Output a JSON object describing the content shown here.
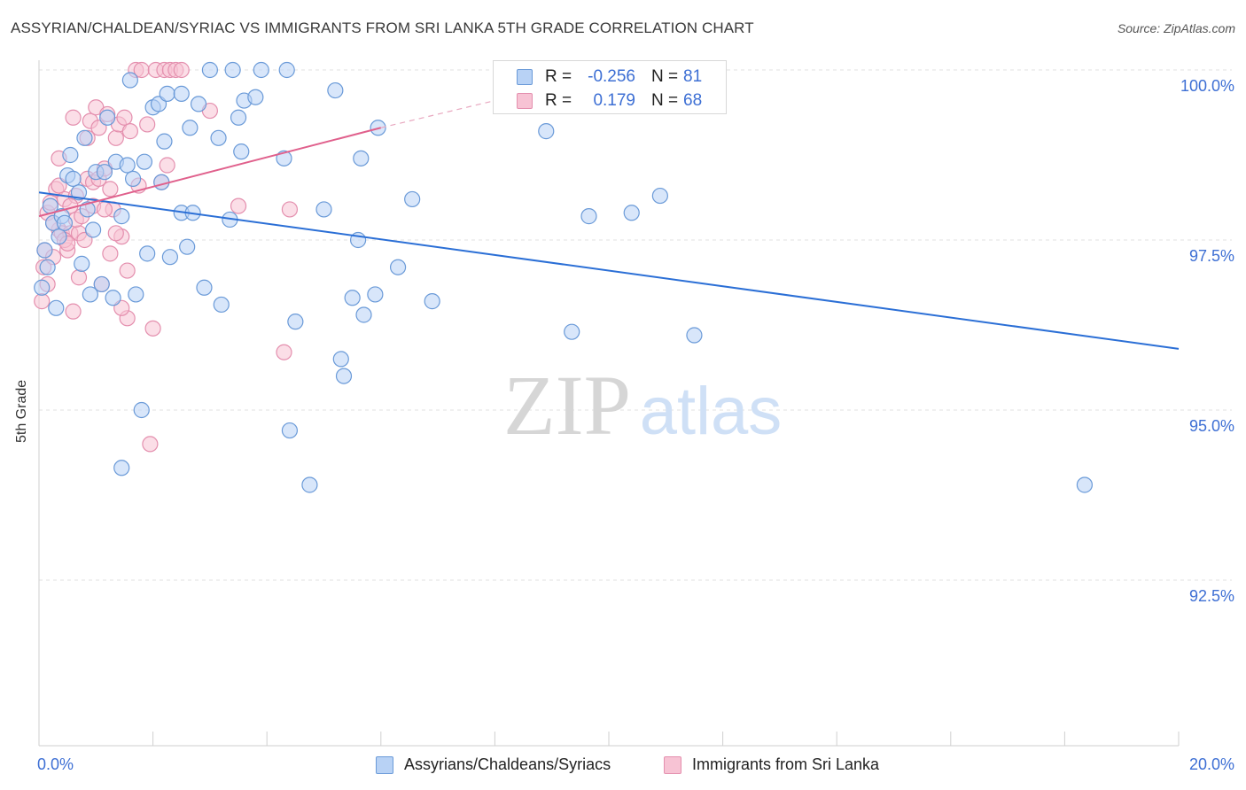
{
  "title": "ASSYRIAN/CHALDEAN/SYRIAC VS IMMIGRANTS FROM SRI LANKA 5TH GRADE CORRELATION CHART",
  "source": "Source: ZipAtlas.com",
  "watermark": {
    "zip": "ZIP",
    "atlas": "atlas"
  },
  "legend_top": {
    "rows": [
      {
        "r_label": "R =",
        "r_value": "-0.256",
        "n_label": "N =",
        "n_value": "81"
      },
      {
        "r_label": "R =",
        "r_value": "0.179",
        "n_label": "N =",
        "n_value": "68"
      }
    ]
  },
  "legend_bottom": {
    "series1": "Assyrians/Chaldeans/Syriacs",
    "series2": "Immigrants from Sri Lanka"
  },
  "colors": {
    "blue_fill": "#b8d2f5",
    "blue_stroke": "#6a9ad8",
    "blue_line": "#2b6fd6",
    "pink_fill": "#f7c3d4",
    "pink_stroke": "#e48fae",
    "pink_line": "#e0608c",
    "axis_text": "#3d6fd4",
    "grid": "#e2e2e2"
  },
  "chart_data": {
    "type": "scatter",
    "title": "ASSYRIAN/CHALDEAN/SYRIAC VS IMMIGRANTS FROM SRI LANKA 5TH GRADE CORRELATION CHART",
    "xlabel": "",
    "ylabel": "5th Grade",
    "xlim": [
      0.0,
      20.0
    ],
    "ylim": [
      90.0,
      100.5
    ],
    "x_tick_labels": {
      "left": "0.0%",
      "right": "20.0%"
    },
    "y_ticks": [
      {
        "value": 100.0,
        "label": "100.0%"
      },
      {
        "value": 97.5,
        "label": "97.5%"
      },
      {
        "value": 95.0,
        "label": "95.0%"
      },
      {
        "value": 92.5,
        "label": "92.5%"
      }
    ],
    "series": [
      {
        "name": "Assyrians/Chaldeans/Syriacs",
        "color": "#6a9ad8",
        "r": -0.256,
        "n": 81,
        "trend": {
          "x": [
            0.0,
            20.0
          ],
          "y": [
            98.2,
            95.9
          ]
        },
        "points": [
          [
            0.05,
            96.8
          ],
          [
            0.1,
            97.35
          ],
          [
            0.15,
            97.1
          ],
          [
            0.2,
            98.0
          ],
          [
            0.25,
            97.75
          ],
          [
            0.3,
            96.5
          ],
          [
            0.35,
            97.55
          ],
          [
            0.4,
            97.85
          ],
          [
            0.5,
            98.45
          ],
          [
            0.55,
            98.75
          ],
          [
            0.6,
            98.4
          ],
          [
            0.7,
            98.2
          ],
          [
            0.75,
            97.15
          ],
          [
            0.8,
            99.0
          ],
          [
            0.85,
            97.95
          ],
          [
            0.9,
            96.7
          ],
          [
            0.95,
            97.65
          ],
          [
            1.0,
            98.5
          ],
          [
            1.1,
            96.85
          ],
          [
            1.15,
            98.5
          ],
          [
            1.2,
            99.3
          ],
          [
            1.3,
            96.65
          ],
          [
            1.35,
            98.65
          ],
          [
            1.45,
            97.85
          ],
          [
            1.55,
            98.6
          ],
          [
            1.6,
            99.85
          ],
          [
            1.65,
            98.4
          ],
          [
            1.7,
            96.7
          ],
          [
            1.8,
            95.0
          ],
          [
            1.85,
            98.65
          ],
          [
            1.9,
            97.3
          ],
          [
            2.0,
            99.45
          ],
          [
            2.1,
            99.5
          ],
          [
            2.15,
            98.35
          ],
          [
            2.2,
            98.95
          ],
          [
            2.25,
            99.65
          ],
          [
            2.3,
            97.25
          ],
          [
            2.5,
            97.9
          ],
          [
            2.5,
            99.65
          ],
          [
            2.6,
            97.4
          ],
          [
            2.65,
            99.15
          ],
          [
            2.7,
            97.9
          ],
          [
            2.8,
            99.5
          ],
          [
            2.9,
            96.8
          ],
          [
            3.0,
            100.0
          ],
          [
            3.2,
            96.55
          ],
          [
            3.35,
            97.8
          ],
          [
            3.4,
            100.0
          ],
          [
            3.5,
            99.3
          ],
          [
            3.15,
            99.0
          ],
          [
            3.55,
            98.8
          ],
          [
            3.6,
            99.55
          ],
          [
            3.8,
            99.6
          ],
          [
            3.9,
            100.0
          ],
          [
            4.35,
            100.0
          ],
          [
            4.3,
            98.7
          ],
          [
            4.4,
            94.7
          ],
          [
            4.5,
            96.3
          ],
          [
            4.75,
            93.9
          ],
          [
            5.0,
            97.95
          ],
          [
            5.2,
            99.7
          ],
          [
            5.3,
            95.75
          ],
          [
            5.35,
            95.5
          ],
          [
            5.5,
            96.65
          ],
          [
            5.6,
            97.5
          ],
          [
            5.65,
            98.7
          ],
          [
            5.7,
            96.4
          ],
          [
            5.9,
            96.7
          ],
          [
            5.95,
            99.15
          ],
          [
            6.3,
            97.1
          ],
          [
            6.55,
            98.1
          ],
          [
            6.9,
            96.6
          ],
          [
            8.9,
            99.1
          ],
          [
            9.35,
            96.15
          ],
          [
            9.65,
            97.85
          ],
          [
            10.4,
            97.9
          ],
          [
            10.9,
            98.15
          ],
          [
            11.5,
            96.1
          ],
          [
            18.35,
            93.9
          ],
          [
            1.45,
            94.15
          ],
          [
            0.45,
            97.75
          ]
        ]
      },
      {
        "name": "Immigrants from Sri Lanka",
        "color": "#e48fae",
        "r": 0.179,
        "n": 68,
        "trend": {
          "x": [
            0.0,
            6.0
          ],
          "y": [
            97.85,
            99.15
          ],
          "dashed_to": [
            9.0,
            99.75
          ]
        },
        "points": [
          [
            0.05,
            96.6
          ],
          [
            0.08,
            97.1
          ],
          [
            0.1,
            97.35
          ],
          [
            0.15,
            97.9
          ],
          [
            0.2,
            98.05
          ],
          [
            0.25,
            97.25
          ],
          [
            0.3,
            98.25
          ],
          [
            0.35,
            97.65
          ],
          [
            0.4,
            97.6
          ],
          [
            0.45,
            98.1
          ],
          [
            0.5,
            97.35
          ],
          [
            0.55,
            97.6
          ],
          [
            0.6,
            96.45
          ],
          [
            0.65,
            98.15
          ],
          [
            0.7,
            97.6
          ],
          [
            0.8,
            97.5
          ],
          [
            0.85,
            98.4
          ],
          [
            0.9,
            99.25
          ],
          [
            0.95,
            98.35
          ],
          [
            1.0,
            99.45
          ],
          [
            1.05,
            98.4
          ],
          [
            1.1,
            96.85
          ],
          [
            1.15,
            98.55
          ],
          [
            1.2,
            99.35
          ],
          [
            1.25,
            97.3
          ],
          [
            1.3,
            97.95
          ],
          [
            1.35,
            99.0
          ],
          [
            1.4,
            99.2
          ],
          [
            1.45,
            97.55
          ],
          [
            1.5,
            99.3
          ],
          [
            1.55,
            96.35
          ],
          [
            1.6,
            99.1
          ],
          [
            1.7,
            100.0
          ],
          [
            1.75,
            98.3
          ],
          [
            1.8,
            100.0
          ],
          [
            1.9,
            99.2
          ],
          [
            2.0,
            96.2
          ],
          [
            2.05,
            100.0
          ],
          [
            2.15,
            98.35
          ],
          [
            2.2,
            100.0
          ],
          [
            2.25,
            98.6
          ],
          [
            2.3,
            100.0
          ],
          [
            2.4,
            100.0
          ],
          [
            2.5,
            100.0
          ],
          [
            3.0,
            99.4
          ],
          [
            3.5,
            98.0
          ],
          [
            4.3,
            95.85
          ],
          [
            4.4,
            97.95
          ],
          [
            1.95,
            94.5
          ],
          [
            0.15,
            96.85
          ],
          [
            0.25,
            97.75
          ],
          [
            0.35,
            98.3
          ],
          [
            0.45,
            97.5
          ],
          [
            0.55,
            98.0
          ],
          [
            0.65,
            97.8
          ],
          [
            0.75,
            97.85
          ],
          [
            0.95,
            98.0
          ],
          [
            1.15,
            97.95
          ],
          [
            1.25,
            98.25
          ],
          [
            1.35,
            97.6
          ],
          [
            1.45,
            96.5
          ],
          [
            0.35,
            98.7
          ],
          [
            0.85,
            99.0
          ],
          [
            1.05,
            99.15
          ],
          [
            0.5,
            97.45
          ],
          [
            0.7,
            96.95
          ],
          [
            1.55,
            97.05
          ],
          [
            0.6,
            99.3
          ]
        ]
      }
    ]
  }
}
